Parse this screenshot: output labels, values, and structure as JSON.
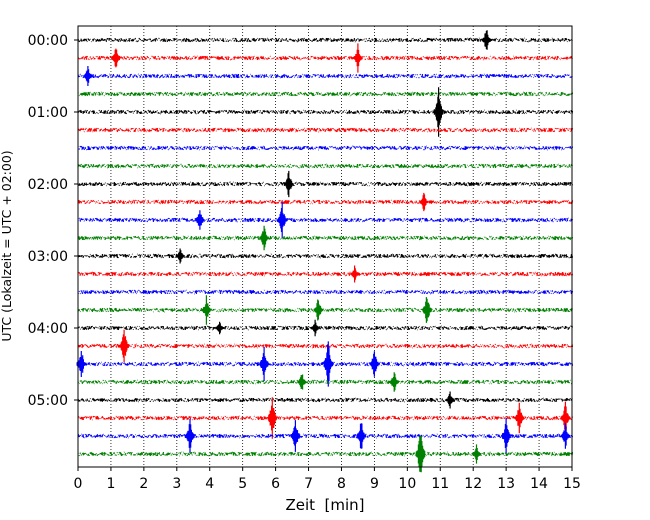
{
  "chart_data": {
    "type": "line",
    "title": "",
    "xlabel": "Zeit  [min]",
    "ylabel": "UTC (Lokalzeit = UTC + 02:00)",
    "xlim": [
      0,
      15
    ],
    "x_ticks": [
      0,
      1,
      2,
      3,
      4,
      5,
      6,
      7,
      8,
      9,
      10,
      11,
      12,
      13,
      14,
      15
    ],
    "x_tick_labels": [
      "0",
      "1",
      "2",
      "3",
      "4",
      "5",
      "6",
      "7",
      "8",
      "9",
      "10",
      "11",
      "12",
      "13",
      "14",
      "15"
    ],
    "y_tick_labels": [
      "00:00",
      "01:00",
      "02:00",
      "03:00",
      "04:00",
      "05:00"
    ],
    "grid": "vertical dotted",
    "colors": {
      "cycle": [
        "#000000",
        "#ff0000",
        "#0000ff",
        "#008000"
      ]
    },
    "series": [
      {
        "start": "00:00",
        "events": [
          {
            "t": 12.4,
            "amp": 1.5
          }
        ]
      },
      {
        "start": "00:15",
        "events": [
          {
            "t": 1.15,
            "amp": 1.6
          },
          {
            "t": 8.5,
            "amp": 1.6
          }
        ]
      },
      {
        "start": "00:30",
        "events": [
          {
            "t": 0.3,
            "amp": 1.2
          }
        ]
      },
      {
        "start": "00:45",
        "events": []
      },
      {
        "start": "01:00",
        "events": [
          {
            "t": 10.95,
            "amp": 3.0
          }
        ]
      },
      {
        "start": "01:15",
        "events": []
      },
      {
        "start": "01:30",
        "events": []
      },
      {
        "start": "01:45",
        "events": []
      },
      {
        "start": "02:00",
        "events": [
          {
            "t": 6.4,
            "amp": 1.6
          }
        ]
      },
      {
        "start": "02:15",
        "events": [
          {
            "t": 10.5,
            "amp": 1.2
          }
        ]
      },
      {
        "start": "02:30",
        "events": [
          {
            "t": 3.7,
            "amp": 1.5
          },
          {
            "t": 6.2,
            "amp": 2.0
          }
        ]
      },
      {
        "start": "02:45",
        "events": [
          {
            "t": 5.65,
            "amp": 1.5
          }
        ]
      },
      {
        "start": "03:00",
        "events": [
          {
            "t": 3.1,
            "amp": 0.9
          }
        ]
      },
      {
        "start": "03:15",
        "events": [
          {
            "t": 8.4,
            "amp": 1.0
          }
        ]
      },
      {
        "start": "03:30",
        "events": []
      },
      {
        "start": "03:45",
        "events": [
          {
            "t": 3.9,
            "amp": 1.5
          },
          {
            "t": 7.3,
            "amp": 1.6
          },
          {
            "t": 10.6,
            "amp": 2.0
          }
        ]
      },
      {
        "start": "04:00",
        "events": [
          {
            "t": 4.3,
            "amp": 1.0
          },
          {
            "t": 7.2,
            "amp": 1.0
          }
        ]
      },
      {
        "start": "04:15",
        "events": [
          {
            "t": 1.4,
            "amp": 2.2
          }
        ]
      },
      {
        "start": "04:30",
        "events": [
          {
            "t": 0.1,
            "amp": 2.0
          },
          {
            "t": 5.65,
            "amp": 2.0
          },
          {
            "t": 7.6,
            "amp": 3.0
          },
          {
            "t": 9.0,
            "amp": 1.8
          }
        ]
      },
      {
        "start": "04:45",
        "events": [
          {
            "t": 6.8,
            "amp": 1.2
          },
          {
            "t": 9.6,
            "amp": 1.4
          }
        ]
      },
      {
        "start": "05:00",
        "events": [
          {
            "t": 11.3,
            "amp": 1.0
          }
        ]
      },
      {
        "start": "05:15",
        "events": [
          {
            "t": 5.9,
            "amp": 2.5
          },
          {
            "t": 13.4,
            "amp": 2.0
          },
          {
            "t": 14.8,
            "amp": 2.0
          }
        ]
      },
      {
        "start": "05:30",
        "events": [
          {
            "t": 3.4,
            "amp": 2.0
          },
          {
            "t": 6.6,
            "amp": 2.2
          },
          {
            "t": 8.6,
            "amp": 2.0
          },
          {
            "t": 13.0,
            "amp": 2.0
          },
          {
            "t": 14.8,
            "amp": 1.5
          }
        ]
      },
      {
        "start": "05:45",
        "events": [
          {
            "t": 10.4,
            "amp": 3.5
          },
          {
            "t": 12.1,
            "amp": 1.2
          }
        ]
      }
    ]
  }
}
